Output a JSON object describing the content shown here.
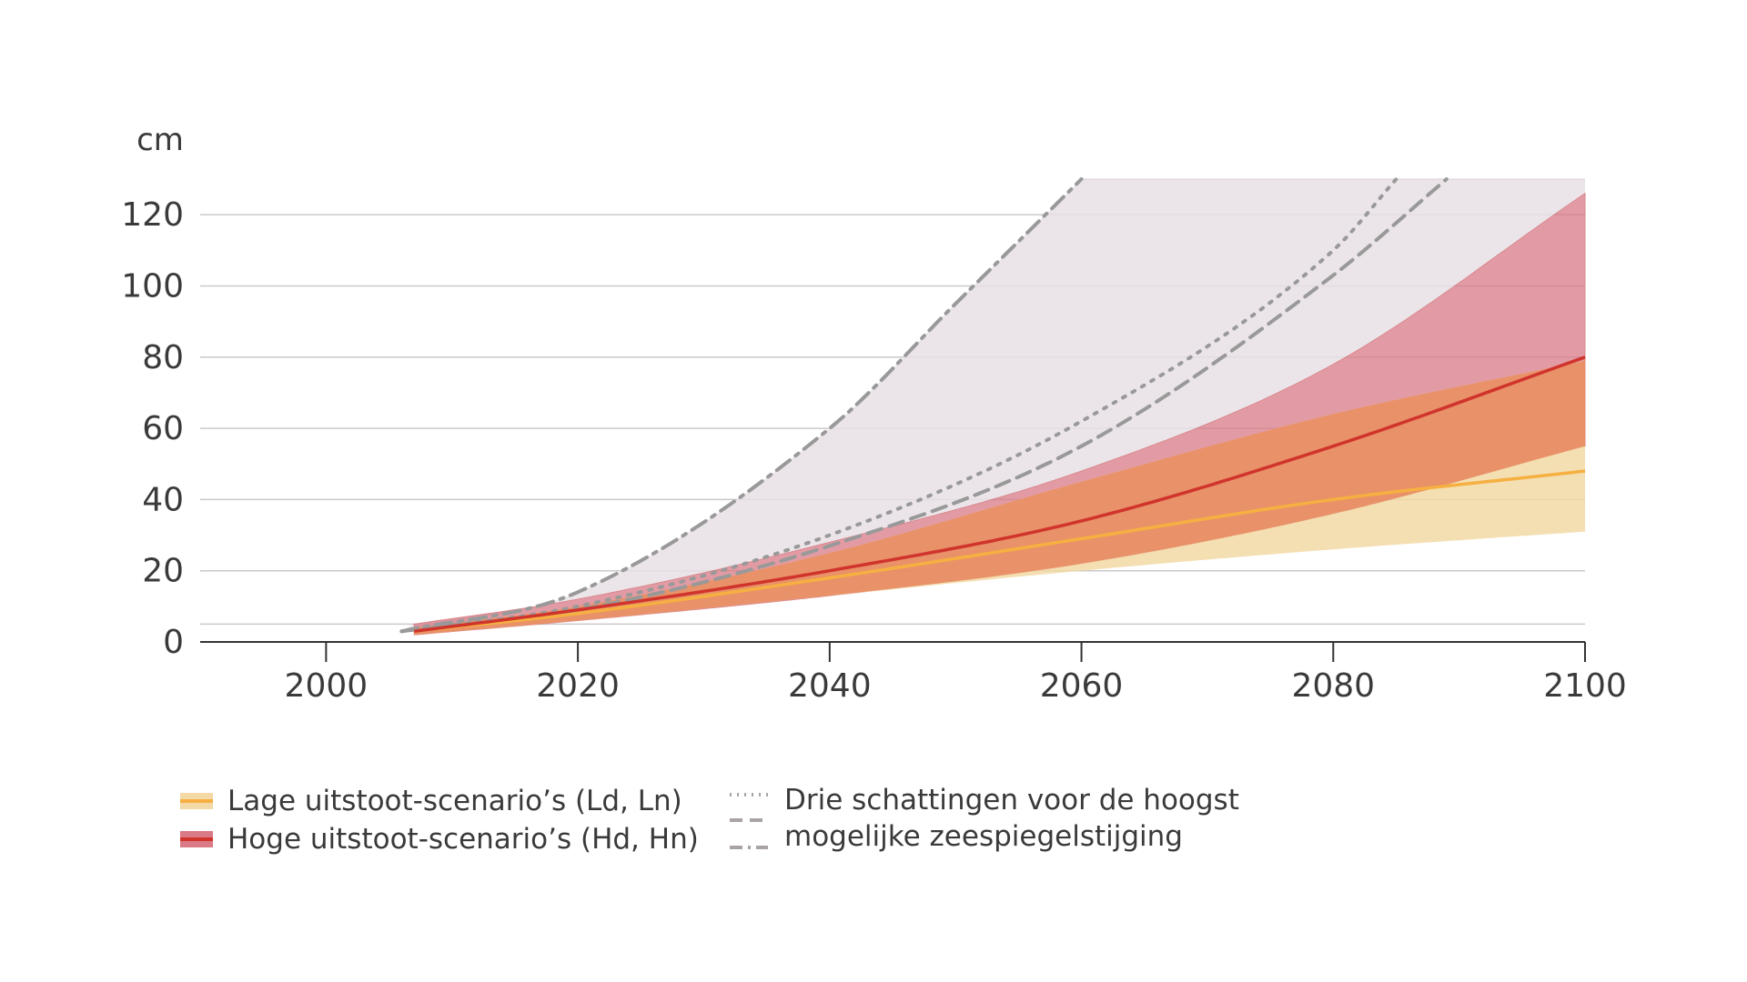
{
  "chart_data": {
    "type": "area",
    "ylabel": "cm",
    "xlim": [
      1990,
      2100
    ],
    "ylim": [
      0,
      130
    ],
    "x_ticks": [
      "2000",
      "2020",
      "2040",
      "2060",
      "2080",
      "2100"
    ],
    "y_ticks": [
      "0",
      "20",
      "40",
      "60",
      "80",
      "100",
      "120"
    ],
    "grid": true,
    "colors": {
      "low": "#f5b041",
      "low_band": "#f2d9a6",
      "high": "#d0342c",
      "high_band": "#d97a86",
      "overlap_band": "#e88a62",
      "upper_envelope": "#e7e1e6",
      "dashes": "#999999"
    },
    "series": [
      {
        "name": "Lage uitstoot-scenario’s (Ld, Ln)",
        "style": "band-with-line",
        "x": [
          2007,
          2020,
          2040,
          2060,
          2080,
          2100
        ],
        "values": [
          3,
          8,
          18,
          29,
          40,
          48
        ],
        "lower": [
          2,
          6,
          13,
          20,
          26,
          31
        ],
        "upper": [
          4,
          10,
          25,
          45,
          64,
          79
        ]
      },
      {
        "name": "Hoge uitstoot-scenario’s (Hd, Hn)",
        "style": "band-with-line",
        "x": [
          2007,
          2020,
          2040,
          2060,
          2080,
          2100
        ],
        "values": [
          3,
          9,
          20,
          34,
          55,
          80
        ],
        "lower": [
          2,
          6,
          13,
          22,
          36,
          55
        ],
        "upper": [
          5,
          12,
          28,
          48,
          78,
          126
        ]
      },
      {
        "name": "Drie schattingen voor de hoogst mogelijke zeespiegelstijging",
        "style": "dotted",
        "x": [
          2006,
          2020,
          2040,
          2060,
          2080,
          2085
        ],
        "values": [
          3,
          10,
          30,
          62,
          110,
          130
        ]
      },
      {
        "name": "Drie schattingen voor de hoogst mogelijke zeespiegelstijging",
        "style": "dashed",
        "x": [
          2006,
          2020,
          2040,
          2060,
          2080,
          2089
        ],
        "values": [
          3,
          9,
          27,
          55,
          103,
          130
        ]
      },
      {
        "name": "Drie schattingen voor de hoogst mogelijke zeespiegelstijging",
        "style": "dash-dot",
        "x": [
          2006,
          2020,
          2040,
          2050,
          2060
        ],
        "values": [
          3,
          14,
          60,
          95,
          130
        ]
      }
    ],
    "legend": {
      "placement": "bottom",
      "items": [
        "Lage uitstoot-scenario’s (Ld, Ln)",
        "Hoge uitstoot-scenario’s (Hd, Hn)"
      ],
      "dashed_caption_line1": "Drie schattingen voor de hoogst",
      "dashed_caption_line2": "mogelijke zeespiegelstijging"
    }
  }
}
